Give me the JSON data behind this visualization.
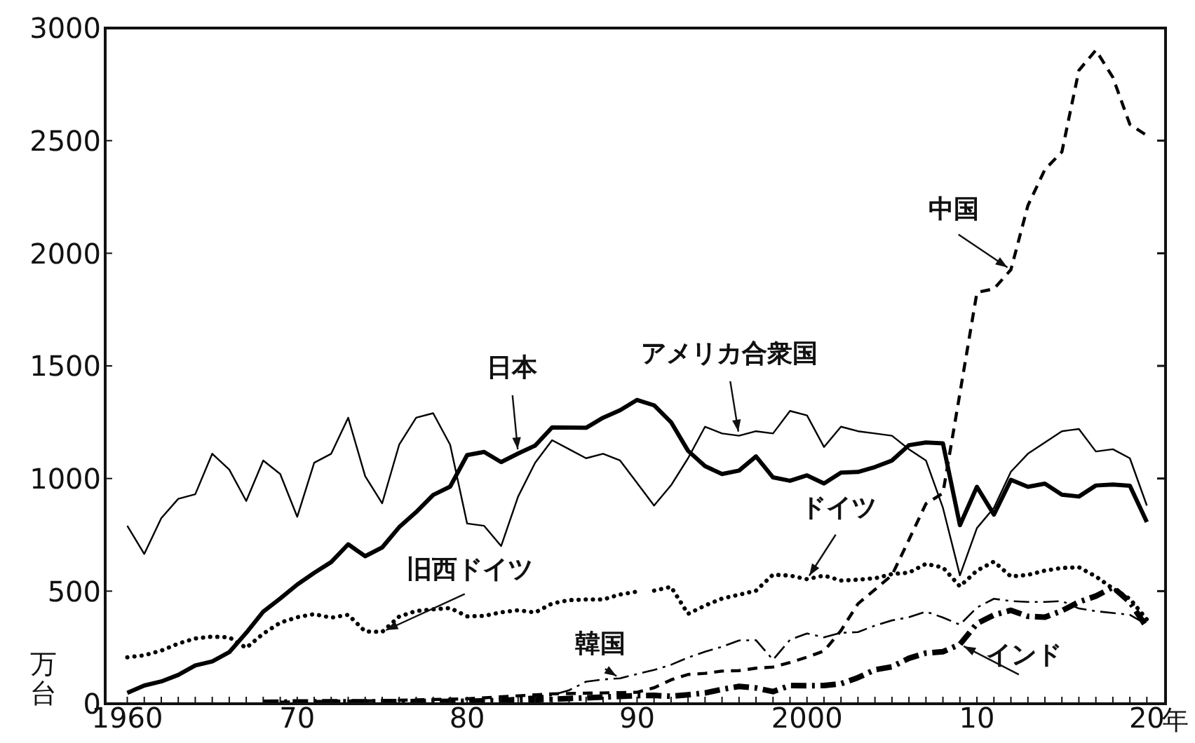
{
  "chart_data": {
    "type": "line",
    "ylabel": "万台",
    "xlim": [
      1958.7,
      2021.1
    ],
    "xticks": [
      {
        "value": 1960,
        "label": "1960"
      },
      {
        "value": 1961,
        "label": null
      },
      {
        "value": 1962,
        "label": null
      },
      {
        "value": 1963,
        "label": null
      },
      {
        "value": 1964,
        "label": null
      },
      {
        "value": 1965,
        "label": null
      },
      {
        "value": 1966,
        "label": null
      },
      {
        "value": 1967,
        "label": null
      },
      {
        "value": 1968,
        "label": null
      },
      {
        "value": 1969,
        "label": null
      },
      {
        "value": 1970,
        "label": "70"
      },
      {
        "value": 1971,
        "label": null
      },
      {
        "value": 1972,
        "label": null
      },
      {
        "value": 1973,
        "label": null
      },
      {
        "value": 1974,
        "label": null
      },
      {
        "value": 1975,
        "label": null
      },
      {
        "value": 1976,
        "label": null
      },
      {
        "value": 1977,
        "label": null
      },
      {
        "value": 1978,
        "label": null
      },
      {
        "value": 1979,
        "label": null
      },
      {
        "value": 1980,
        "label": "80"
      },
      {
        "value": 1981,
        "label": null
      },
      {
        "value": 1982,
        "label": null
      },
      {
        "value": 1983,
        "label": null
      },
      {
        "value": 1984,
        "label": null
      },
      {
        "value": 1985,
        "label": null
      },
      {
        "value": 1986,
        "label": null
      },
      {
        "value": 1987,
        "label": null
      },
      {
        "value": 1988,
        "label": null
      },
      {
        "value": 1989,
        "label": null
      },
      {
        "value": 1990,
        "label": "90"
      },
      {
        "value": 1991,
        "label": null
      },
      {
        "value": 1992,
        "label": null
      },
      {
        "value": 1993,
        "label": null
      },
      {
        "value": 1994,
        "label": null
      },
      {
        "value": 1995,
        "label": null
      },
      {
        "value": 1996,
        "label": null
      },
      {
        "value": 1997,
        "label": null
      },
      {
        "value": 1998,
        "label": null
      },
      {
        "value": 1999,
        "label": null
      },
      {
        "value": 2000,
        "label": "2000"
      },
      {
        "value": 2001,
        "label": null
      },
      {
        "value": 2002,
        "label": null
      },
      {
        "value": 2003,
        "label": null
      },
      {
        "value": 2004,
        "label": null
      },
      {
        "value": 2005,
        "label": null
      },
      {
        "value": 2006,
        "label": null
      },
      {
        "value": 2007,
        "label": null
      },
      {
        "value": 2008,
        "label": null
      },
      {
        "value": 2009,
        "label": null
      },
      {
        "value": 2010,
        "label": "10"
      },
      {
        "value": 2011,
        "label": null
      },
      {
        "value": 2012,
        "label": null
      },
      {
        "value": 2013,
        "label": null
      },
      {
        "value": 2014,
        "label": null
      },
      {
        "value": 2015,
        "label": null
      },
      {
        "value": 2016,
        "label": null
      },
      {
        "value": 2017,
        "label": null
      },
      {
        "value": 2018,
        "label": null
      },
      {
        "value": 2019,
        "label": null
      },
      {
        "value": 2020,
        "label": "20"
      }
    ],
    "xlabel": "年",
    "ylim": [
      0,
      3000
    ],
    "yticks": [
      0,
      500,
      1000,
      1500,
      2000,
      2500,
      3000
    ],
    "series": [
      {
        "name": "日本",
        "color": "#000000",
        "line_style": "solid",
        "x": [
          1960,
          1961,
          1962,
          1963,
          1964,
          1965,
          1966,
          1967,
          1968,
          1969,
          1970,
          1971,
          1972,
          1973,
          1974,
          1975,
          1976,
          1977,
          1978,
          1979,
          1980,
          1981,
          1982,
          1983,
          1984,
          1985,
          1986,
          1987,
          1988,
          1989,
          1990,
          1991,
          1992,
          1993,
          1994,
          1995,
          1996,
          1997,
          1998,
          1999,
          2000,
          2001,
          2002,
          2003,
          2004,
          2005,
          2006,
          2007,
          2008,
          2009,
          2010,
          2011,
          2012,
          2013,
          2014,
          2015,
          2016,
          2017,
          2018,
          2019,
          2020
        ],
        "values": [
          48,
          81,
          99,
          128,
          170,
          188,
          229,
          315,
          409,
          467,
          529,
          581,
          629,
          708,
          655,
          694,
          784,
          851,
          927,
          964,
          1104,
          1118,
          1073,
          1111,
          1146,
          1227,
          1226,
          1225,
          1270,
          1303,
          1349,
          1325,
          1250,
          1123,
          1055,
          1020,
          1035,
          1098,
          1005,
          990,
          1014,
          978,
          1026,
          1029,
          1051,
          1080,
          1148,
          1160,
          1156,
          793,
          963,
          840,
          994,
          963,
          977,
          928,
          920,
          969,
          973,
          968,
          807
        ]
      },
      {
        "name": "アメリカ合衆国",
        "color": "#000000",
        "line_style": "solid",
        "x": [
          1960,
          1961,
          1962,
          1963,
          1964,
          1965,
          1966,
          1967,
          1968,
          1969,
          1970,
          1971,
          1972,
          1973,
          1974,
          1975,
          1976,
          1977,
          1978,
          1979,
          1980,
          1981,
          1982,
          1983,
          1984,
          1985,
          1986,
          1987,
          1988,
          1989,
          1990,
          1991,
          1992,
          1993,
          1994,
          1995,
          1996,
          1997,
          1998,
          1999,
          2000,
          2001,
          2002,
          2003,
          2004,
          2005,
          2006,
          2007,
          2008,
          2009,
          2010,
          2011,
          2012,
          2013,
          2014,
          2015,
          2016,
          2017,
          2018,
          2019,
          2020
        ],
        "values": [
          790,
          665,
          824,
          910,
          930,
          1110,
          1040,
          900,
          1080,
          1020,
          830,
          1070,
          1110,
          1270,
          1010,
          890,
          1150,
          1270,
          1290,
          1150,
          800,
          790,
          700,
          920,
          1070,
          1170,
          1130,
          1090,
          1110,
          1080,
          980,
          880,
          970,
          1090,
          1230,
          1200,
          1190,
          1210,
          1200,
          1300,
          1280,
          1140,
          1230,
          1210,
          1200,
          1190,
          1130,
          1080,
          870,
          570,
          780,
          870,
          1030,
          1110,
          1160,
          1210,
          1220,
          1120,
          1130,
          1090,
          880
        ]
      },
      {
        "name": "中国",
        "color": "#000000",
        "line_style": "dashed",
        "x": [
          1968,
          1970,
          1975,
          1980,
          1985,
          1990,
          1991,
          1992,
          1993,
          1994,
          1995,
          1996,
          1997,
          1998,
          1999,
          2000,
          2001,
          2002,
          2003,
          2004,
          2005,
          2006,
          2007,
          2008,
          2009,
          2010,
          2011,
          2012,
          2013,
          2014,
          2015,
          2016,
          2017,
          2018,
          2019,
          2020
        ],
        "values": [
          5,
          9,
          14,
          22,
          44,
          51,
          71,
          106,
          130,
          135,
          145,
          147,
          158,
          163,
          183,
          207,
          234,
          325,
          444,
          507,
          571,
          728,
          888,
          935,
          1379,
          1826,
          1842,
          1927,
          2212,
          2372,
          2450,
          2812,
          2902,
          2781,
          2572,
          2523
        ]
      },
      {
        "name": "旧西ドイツ",
        "color": "#000000",
        "line_style": "dotted",
        "x": [
          1960,
          1961,
          1962,
          1963,
          1964,
          1965,
          1966,
          1967,
          1968,
          1969,
          1970,
          1971,
          1972,
          1973,
          1974,
          1975,
          1976,
          1977,
          1978,
          1979,
          1980,
          1981,
          1982,
          1983,
          1984,
          1985,
          1986,
          1987,
          1988,
          1989,
          1990
        ],
        "values": [
          206,
          215,
          236,
          267,
          290,
          298,
          295,
          248,
          311,
          360,
          384,
          398,
          382,
          395,
          321,
          319,
          387,
          412,
          419,
          425,
          388,
          390,
          406,
          415,
          405,
          445,
          460,
          463,
          463,
          485,
          498
        ]
      },
      {
        "name": "ドイツ",
        "color": "#000000",
        "line_style": "dotted",
        "x": [
          1991,
          1992,
          1993,
          1994,
          1995,
          1996,
          1997,
          1998,
          1999,
          2000,
          2001,
          2002,
          2003,
          2004,
          2005,
          2006,
          2007,
          2008,
          2009,
          2010,
          2011,
          2012,
          2013,
          2014,
          2015,
          2016,
          2017,
          2018,
          2019,
          2020
        ],
        "values": [
          502,
          519,
          399,
          436,
          467,
          484,
          502,
          573,
          569,
          553,
          569,
          547,
          551,
          557,
          576,
          582,
          621,
          605,
          521,
          591,
          631,
          565,
          572,
          591,
          603,
          606,
          565,
          512,
          466,
          374
        ]
      },
      {
        "name": "韓国",
        "color": "#000000",
        "line_style": "dashdot",
        "x": [
          1968,
          1970,
          1975,
          1980,
          1985,
          1986,
          1987,
          1988,
          1989,
          1990,
          1991,
          1992,
          1993,
          1994,
          1995,
          1996,
          1997,
          1998,
          1999,
          2000,
          2001,
          2002,
          2003,
          2004,
          2005,
          2006,
          2007,
          2008,
          2009,
          2010,
          2011,
          2012,
          2013,
          2014,
          2015,
          2016,
          2017,
          2018,
          2019,
          2020
        ],
        "values": [
          2,
          3,
          4,
          12,
          38,
          60,
          98,
          108,
          113,
          132,
          150,
          173,
          205,
          231,
          253,
          281,
          282,
          195,
          284,
          312,
          295,
          315,
          318,
          347,
          370,
          384,
          409,
          383,
          351,
          427,
          466,
          456,
          452,
          452,
          456,
          423,
          411,
          403,
          395,
          351
        ]
      },
      {
        "name": "インド",
        "color": "#000000",
        "line_style": "dashdot",
        "x": [
          1968,
          1970,
          1975,
          1980,
          1985,
          1990,
          1991,
          1992,
          1993,
          1994,
          1995,
          1996,
          1997,
          1998,
          1999,
          2000,
          2001,
          2002,
          2003,
          2004,
          2005,
          2006,
          2007,
          2008,
          2009,
          2010,
          2011,
          2012,
          2013,
          2014,
          2015,
          2016,
          2017,
          2018,
          2019,
          2020
        ],
        "values": [
          6,
          8,
          9,
          11,
          20,
          36,
          37,
          33,
          40,
          48,
          64,
          77,
          70,
          54,
          81,
          80,
          81,
          89,
          116,
          151,
          164,
          202,
          225,
          231,
          264,
          356,
          394,
          415,
          388,
          384,
          413,
          452,
          478,
          517,
          452,
          339
        ]
      }
    ]
  }
}
